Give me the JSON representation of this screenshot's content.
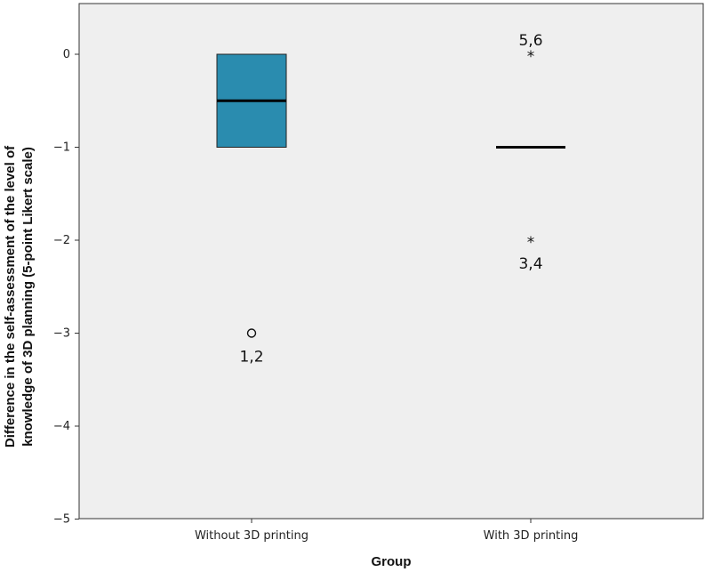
{
  "chart_data": {
    "type": "boxplot",
    "xlabel": "Group",
    "ylabel_lines": [
      "Difference in the self-assessment of the level of",
      "knowledge of 3D planning (5-point Likert scale)"
    ],
    "ylim": [
      -5,
      0.5
    ],
    "yticks": [
      0,
      -1,
      -2,
      -3,
      -4,
      -5
    ],
    "ytick_labels": [
      "0",
      "−1",
      "−2",
      "−3",
      "−4",
      "−5"
    ],
    "grid": false,
    "categories": [
      "Without 3D printing",
      "With 3D printing"
    ],
    "boxes": [
      {
        "category": "Without 3D printing",
        "q1": -1,
        "median": -0.5,
        "q3": 0,
        "whisker_low": -1,
        "whisker_high": 0,
        "outliers": [
          {
            "value": -3,
            "marker": "circle",
            "label": "1,2"
          }
        ]
      },
      {
        "category": "With 3D printing",
        "q1": -1,
        "median": -1,
        "q3": -1,
        "whisker_low": -1,
        "whisker_high": -1,
        "outliers": [
          {
            "value": 0,
            "marker": "star",
            "label": "5,6"
          },
          {
            "value": -2,
            "marker": "star",
            "label": "3,4"
          }
        ]
      }
    ],
    "colors": {
      "plot_bg": "#efefef",
      "box_fill": "#2a8caf",
      "axis": "#333333"
    }
  }
}
